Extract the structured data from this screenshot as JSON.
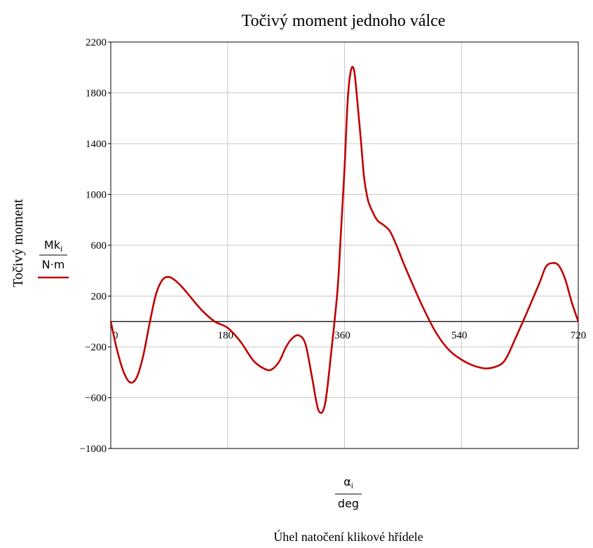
{
  "chart_data": {
    "type": "line",
    "title": "Točivý moment jednoho válce",
    "ylabel": "Točivý moment",
    "xlabel": "Úhel natočení klikové hřídele",
    "y_expr": {
      "num": "Mk",
      "num_sub": "i",
      "den": "N·m"
    },
    "x_expr": {
      "num": "α",
      "num_sub": "i",
      "den": "deg"
    },
    "xlim": [
      0,
      720
    ],
    "ylim": [
      -1000,
      2200
    ],
    "x_ticks": [
      "0",
      "180",
      "360",
      "540",
      "720"
    ],
    "y_ticks": [
      "2200",
      "1800",
      "1400",
      "1000",
      "600",
      "200",
      "−200",
      "−600",
      "−1000"
    ],
    "grid": true,
    "series": [
      {
        "color": "#c00000",
        "x": [
          0,
          10,
          20,
          30,
          40,
          50,
          60,
          70,
          80,
          90,
          100,
          110,
          120,
          140,
          160,
          180,
          200,
          220,
          240,
          250,
          260,
          270,
          280,
          290,
          300,
          310,
          320,
          330,
          340,
          345,
          350,
          355,
          360,
          365,
          370,
          375,
          380,
          385,
          390,
          395,
          400,
          410,
          420,
          430,
          440,
          450,
          460,
          480,
          500,
          520,
          540,
          560,
          580,
          600,
          610,
          620,
          640,
          660,
          670,
          680,
          690,
          700,
          710,
          720
        ],
        "y": [
          0,
          -230,
          -400,
          -480,
          -440,
          -270,
          -10,
          220,
          330,
          350,
          320,
          270,
          210,
          90,
          0,
          -50,
          -160,
          -310,
          -380,
          -370,
          -310,
          -200,
          -130,
          -110,
          -180,
          -440,
          -700,
          -650,
          -220,
          20,
          300,
          750,
          1200,
          1750,
          1980,
          1970,
          1720,
          1440,
          1140,
          980,
          900,
          800,
          760,
          710,
          600,
          470,
          350,
          120,
          -80,
          -220,
          -300,
          -350,
          -370,
          -340,
          -280,
          -170,
          60,
          300,
          430,
          460,
          440,
          330,
          150,
          0
        ]
      }
    ]
  }
}
